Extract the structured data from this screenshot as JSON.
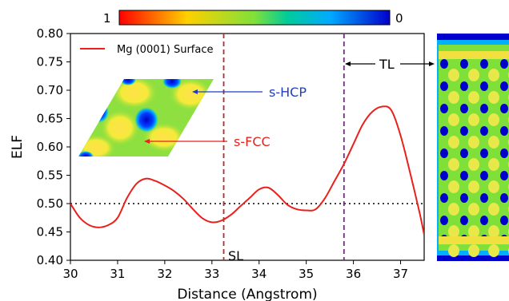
{
  "chart_data": {
    "type": "line",
    "xlabel": "Distance (Angstrom)",
    "ylabel": "ELF",
    "xlim": [
      30,
      37.5
    ],
    "ylim": [
      0.4,
      0.8
    ],
    "x_ticks": [
      "30",
      "31",
      "32",
      "33",
      "34",
      "35",
      "36",
      "37"
    ],
    "y_ticks": [
      "0.40",
      "0.45",
      "0.50",
      "0.55",
      "0.60",
      "0.65",
      "0.70",
      "0.75",
      "0.80"
    ],
    "legend": {
      "position": "top-left",
      "entries": [
        "Mg (0001) Surface"
      ]
    },
    "series": [
      {
        "name": "Mg (0001) Surface",
        "color": "#e8211c",
        "x": [
          30.0,
          30.2,
          30.4,
          30.6,
          30.8,
          31.0,
          31.2,
          31.4,
          31.6,
          31.8,
          32.0,
          32.2,
          32.4,
          32.6,
          32.8,
          33.0,
          33.2,
          33.4,
          33.6,
          33.8,
          34.0,
          34.2,
          34.4,
          34.6,
          34.8,
          35.0,
          35.2,
          35.4,
          35.6,
          35.8,
          36.0,
          36.2,
          36.4,
          36.6,
          36.8,
          37.0,
          37.2,
          37.4,
          37.5
        ],
        "y": [
          0.5,
          0.475,
          0.462,
          0.458,
          0.462,
          0.475,
          0.51,
          0.535,
          0.544,
          0.54,
          0.532,
          0.522,
          0.508,
          0.49,
          0.474,
          0.467,
          0.47,
          0.48,
          0.495,
          0.51,
          0.525,
          0.528,
          0.515,
          0.498,
          0.49,
          0.488,
          0.49,
          0.51,
          0.54,
          0.57,
          0.605,
          0.64,
          0.662,
          0.671,
          0.665,
          0.62,
          0.555,
          0.485,
          0.445
        ]
      }
    ],
    "reference_lines": [
      {
        "orientation": "horizontal",
        "value": 0.5,
        "style": "dotted",
        "color": "#000000"
      },
      {
        "orientation": "vertical",
        "value": 33.25,
        "style": "dashed",
        "color": "#b03030",
        "label": "SL"
      },
      {
        "orientation": "vertical",
        "value": 35.8,
        "style": "dashed",
        "color": "#7b2a8c"
      }
    ],
    "colorbar": {
      "left_label": "1",
      "right_label": "0",
      "colors": [
        "#ff0000",
        "#ffff00",
        "#00cc66",
        "#00aaff",
        "#0000cc"
      ]
    },
    "annotations": [
      {
        "text": "s-HCP",
        "color": "#1f3fbf"
      },
      {
        "text": "s-FCC",
        "color": "#e8211c"
      },
      {
        "text": "TL",
        "color": "#000000"
      },
      {
        "text": "SL",
        "color": "#000000"
      }
    ]
  }
}
